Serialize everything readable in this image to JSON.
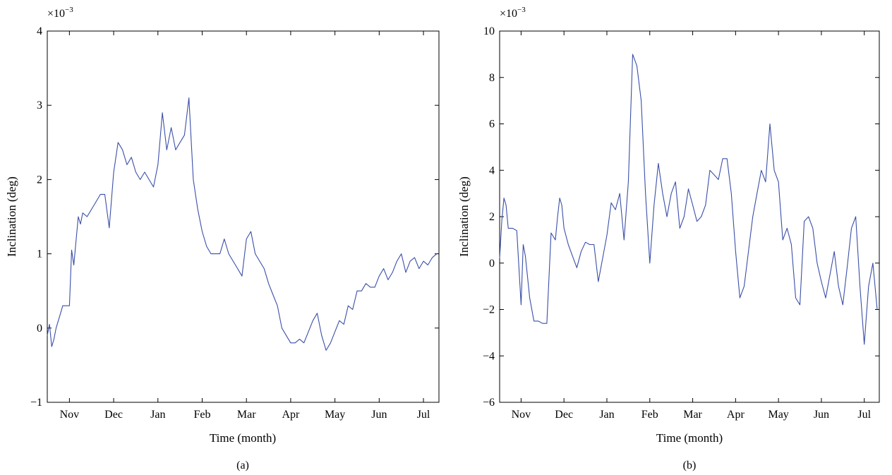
{
  "chart_data": [
    {
      "type": "line",
      "caption": "(a)",
      "xlabel": "Time (month)",
      "ylabel": "Inclination (deg)",
      "y_exponent_base": "×10",
      "y_exponent_power": "−3",
      "ylim": [
        -1,
        4
      ],
      "yticks": [
        -1,
        0,
        1,
        2,
        3,
        4
      ],
      "ytick_labels": [
        "−1",
        "0",
        "1",
        "2",
        "3",
        "4"
      ],
      "xlim": [
        0,
        8.85
      ],
      "xticks": [
        0.5,
        1.5,
        2.5,
        3.5,
        4.5,
        5.5,
        6.5,
        7.5,
        8.5
      ],
      "xtick_labels": [
        "Nov",
        "Dec",
        "Jan",
        "Feb",
        "Mar",
        "Apr",
        "May",
        "Jun",
        "Jul"
      ],
      "grid": false,
      "color": "#3a4fa8",
      "series": [
        {
          "x": [
            0,
            0.05,
            0.1,
            0.15,
            0.2,
            0.3,
            0.35,
            0.4,
            0.45,
            0.5,
            0.55,
            0.6,
            0.7,
            0.75,
            0.8,
            0.9,
            1.0,
            1.1,
            1.2,
            1.3,
            1.4,
            1.5,
            1.6,
            1.7,
            1.8,
            1.9,
            2.0,
            2.1,
            2.2,
            2.3,
            2.4,
            2.5,
            2.6,
            2.7,
            2.8,
            2.9,
            3.0,
            3.1,
            3.2,
            3.3,
            3.4,
            3.5,
            3.6,
            3.7,
            3.8,
            3.9,
            4.0,
            4.1,
            4.2,
            4.3,
            4.4,
            4.5,
            4.6,
            4.7,
            4.8,
            4.9,
            5.0,
            5.1,
            5.2,
            5.3,
            5.4,
            5.5,
            5.6,
            5.7,
            5.8,
            5.9,
            6.0,
            6.1,
            6.2,
            6.3,
            6.4,
            6.5,
            6.6,
            6.7,
            6.8,
            6.9,
            7.0,
            7.1,
            7.2,
            7.3,
            7.4,
            7.5,
            7.6,
            7.7,
            7.8,
            7.9,
            8.0,
            8.1,
            8.2,
            8.3,
            8.4,
            8.5,
            8.6,
            8.7,
            8.8
          ],
          "y": [
            -0.1,
            0.05,
            -0.25,
            -0.15,
            0.0,
            0.2,
            0.3,
            0.3,
            0.3,
            0.3,
            1.05,
            0.85,
            1.5,
            1.4,
            1.55,
            1.5,
            1.6,
            1.7,
            1.8,
            1.8,
            1.35,
            2.1,
            2.5,
            2.4,
            2.2,
            2.3,
            2.1,
            2.0,
            2.1,
            2.0,
            1.9,
            2.2,
            2.9,
            2.4,
            2.7,
            2.4,
            2.5,
            2.6,
            3.1,
            2.0,
            1.6,
            1.3,
            1.1,
            1.0,
            1.0,
            1.0,
            1.2,
            1.0,
            0.9,
            0.8,
            0.7,
            1.2,
            1.3,
            1.0,
            0.9,
            0.8,
            0.6,
            0.45,
            0.3,
            0.0,
            -0.1,
            -0.2,
            -0.2,
            -0.15,
            -0.2,
            -0.05,
            0.1,
            0.2,
            -0.1,
            -0.3,
            -0.2,
            -0.05,
            0.1,
            0.05,
            0.3,
            0.25,
            0.5,
            0.5,
            0.6,
            0.55,
            0.55,
            0.7,
            0.8,
            0.65,
            0.75,
            0.9,
            1.0,
            0.75,
            0.9,
            0.95,
            0.8,
            0.9,
            0.85,
            0.95,
            1.0
          ]
        }
      ]
    },
    {
      "type": "line",
      "caption": "(b)",
      "xlabel": "Time (month)",
      "ylabel": "Inclination (deg)",
      "y_exponent_base": "×10",
      "y_exponent_power": "−3",
      "ylim": [
        -6,
        10
      ],
      "yticks": [
        -6,
        -4,
        -2,
        0,
        2,
        4,
        6,
        8,
        10
      ],
      "ytick_labels": [
        "−6",
        "−4",
        "−2",
        "0",
        "2",
        "4",
        "6",
        "8",
        "10"
      ],
      "xlim": [
        0,
        8.85
      ],
      "xticks": [
        0.5,
        1.5,
        2.5,
        3.5,
        4.5,
        5.5,
        6.5,
        7.5,
        8.5
      ],
      "xtick_labels": [
        "Nov",
        "Dec",
        "Jan",
        "Feb",
        "Mar",
        "Apr",
        "May",
        "Jun",
        "Jul"
      ],
      "grid": false,
      "color": "#3a4fa8",
      "series": [
        {
          "x": [
            0,
            0.05,
            0.1,
            0.15,
            0.2,
            0.3,
            0.4,
            0.5,
            0.55,
            0.6,
            0.7,
            0.8,
            0.9,
            1.0,
            1.1,
            1.2,
            1.3,
            1.35,
            1.4,
            1.45,
            1.5,
            1.6,
            1.7,
            1.8,
            1.9,
            2.0,
            2.1,
            2.2,
            2.3,
            2.4,
            2.5,
            2.6,
            2.7,
            2.8,
            2.9,
            3.0,
            3.1,
            3.2,
            3.3,
            3.4,
            3.5,
            3.6,
            3.7,
            3.8,
            3.9,
            4.0,
            4.1,
            4.2,
            4.3,
            4.4,
            4.5,
            4.6,
            4.7,
            4.8,
            4.9,
            5.0,
            5.1,
            5.2,
            5.3,
            5.4,
            5.5,
            5.6,
            5.7,
            5.8,
            5.9,
            6.0,
            6.1,
            6.2,
            6.3,
            6.4,
            6.5,
            6.6,
            6.7,
            6.8,
            6.9,
            7.0,
            7.1,
            7.2,
            7.3,
            7.4,
            7.5,
            7.6,
            7.7,
            7.8,
            7.9,
            8.0,
            8.1,
            8.2,
            8.3,
            8.4,
            8.5,
            8.6,
            8.7,
            8.8
          ],
          "y": [
            0.2,
            1.8,
            2.8,
            2.5,
            1.5,
            1.5,
            1.4,
            -1.8,
            0.8,
            0.3,
            -1.5,
            -2.5,
            -2.5,
            -2.6,
            -2.6,
            1.3,
            1.0,
            2.0,
            2.8,
            2.5,
            1.5,
            0.8,
            0.3,
            -0.2,
            0.5,
            0.9,
            0.8,
            0.8,
            -0.8,
            0.2,
            1.2,
            2.6,
            2.3,
            3.0,
            1.0,
            3.5,
            9.0,
            8.5,
            7.0,
            3.0,
            0.0,
            2.5,
            4.3,
            3.0,
            2.0,
            3.0,
            3.5,
            1.5,
            2.0,
            3.2,
            2.5,
            1.8,
            2.0,
            2.5,
            4.0,
            3.8,
            3.6,
            4.5,
            4.5,
            3.0,
            0.5,
            -1.5,
            -1.0,
            0.5,
            2.0,
            3.0,
            4.0,
            3.5,
            6.0,
            4.0,
            3.5,
            1.0,
            1.5,
            0.8,
            -1.5,
            -1.8,
            1.8,
            2.0,
            1.5,
            0.0,
            -0.8,
            -1.5,
            -0.5,
            0.5,
            -1.0,
            -1.8,
            -0.2,
            1.5,
            2.0,
            -1.0,
            -3.5,
            -1.0,
            0.0,
            -2.0
          ]
        }
      ]
    }
  ]
}
